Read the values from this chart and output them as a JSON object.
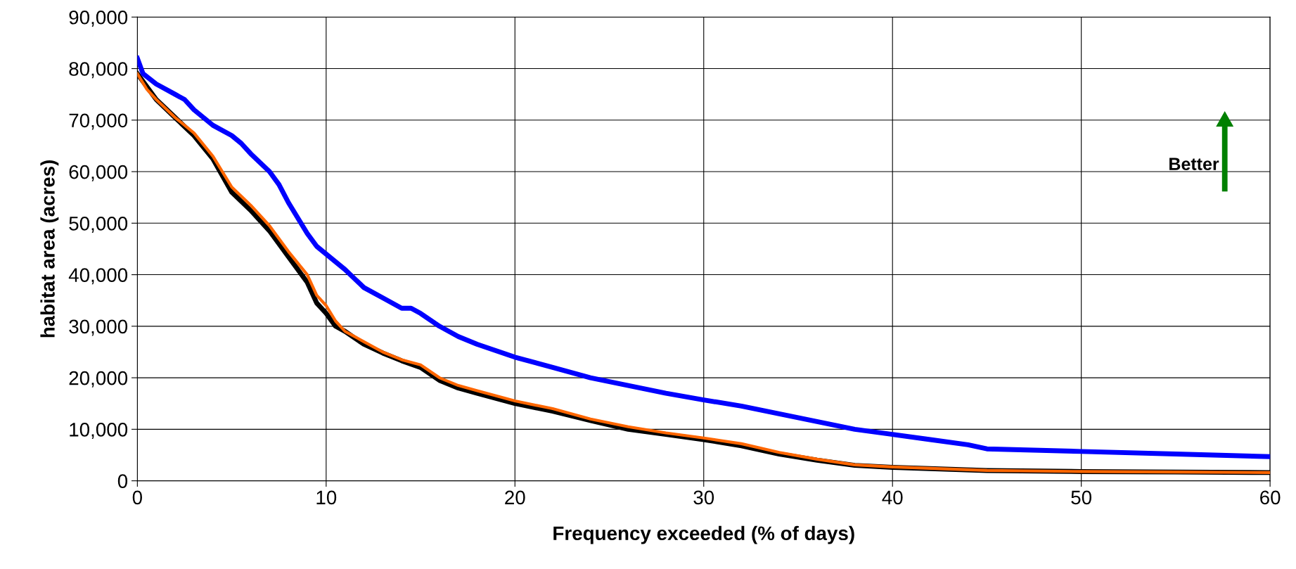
{
  "chart_data": {
    "type": "line",
    "xlabel": "Frequency exceeded (% of days)",
    "ylabel": "habitat area (acres)",
    "xlim": [
      0,
      60
    ],
    "xticks": [
      0,
      10,
      20,
      30,
      40,
      50,
      60
    ],
    "ylim": [
      0,
      90000
    ],
    "yticks": [
      {
        "value": 0,
        "label": "0"
      },
      {
        "value": 10000,
        "label": "10,000"
      },
      {
        "value": 20000,
        "label": "20,000"
      },
      {
        "value": 30000,
        "label": "30,000"
      },
      {
        "value": 40000,
        "label": "40,000"
      },
      {
        "value": 50000,
        "label": "50,000"
      },
      {
        "value": 60000,
        "label": "60,000"
      },
      {
        "value": 70000,
        "label": "70,000"
      },
      {
        "value": 80000,
        "label": "80,000"
      },
      {
        "value": 90000,
        "label": "90,000"
      }
    ],
    "grid": true,
    "legend": false,
    "marker": "none",
    "line_style": "solid",
    "annotations": [
      "Better"
    ],
    "series": [
      {
        "color": "#000000",
        "x": [
          0,
          1,
          2,
          3,
          4,
          5,
          6,
          7,
          8,
          9,
          9.5,
          10,
          10.5,
          11,
          12,
          13,
          14,
          15,
          16,
          17,
          18,
          20,
          22,
          24,
          26,
          28,
          30,
          32,
          34,
          36,
          38,
          40,
          45,
          50,
          55,
          60
        ],
        "values": [
          79000,
          74000,
          70500,
          67000,
          62500,
          56000,
          52500,
          48500,
          43500,
          38500,
          34500,
          32500,
          30000,
          29000,
          26500,
          24800,
          23300,
          22000,
          19500,
          18000,
          17000,
          15000,
          13500,
          11700,
          10000,
          9000,
          8000,
          6800,
          5200,
          4000,
          3000,
          2600,
          2000,
          1800,
          1700,
          1600
        ]
      },
      {
        "color": "#ff6600",
        "x": [
          0,
          0.5,
          1,
          2,
          3,
          4,
          5,
          6,
          7,
          8,
          9,
          9.5,
          10,
          10.5,
          11,
          12,
          13,
          14,
          15,
          16,
          17,
          18,
          20,
          22,
          24,
          26,
          28,
          30,
          32,
          34,
          36,
          38,
          40,
          45,
          50,
          55,
          60
        ],
        "values": [
          79000,
          76000,
          74000,
          70500,
          67500,
          63000,
          57000,
          53500,
          49500,
          44500,
          40000,
          36000,
          34000,
          31000,
          29000,
          27000,
          25000,
          23500,
          22500,
          20000,
          18500,
          17500,
          15500,
          14000,
          12000,
          10500,
          9300,
          8300,
          7200,
          5500,
          4200,
          3100,
          2700,
          2000,
          1800,
          1700,
          1600
        ]
      },
      {
        "color": "#0000ff",
        "x": [
          0,
          0.3,
          1,
          2,
          2.5,
          3,
          4,
          5,
          5.5,
          6,
          7,
          7.5,
          8,
          9,
          9.5,
          10,
          11,
          12,
          13,
          14,
          14.5,
          15,
          16,
          17,
          18,
          20,
          22,
          24,
          26,
          28,
          30,
          32,
          34,
          36,
          38,
          40,
          42,
          44,
          45,
          50,
          55,
          60
        ],
        "values": [
          82000,
          79000,
          77000,
          75000,
          74000,
          72000,
          69000,
          67000,
          65500,
          63500,
          60000,
          57500,
          54000,
          48000,
          45500,
          44000,
          41000,
          37500,
          35500,
          33500,
          33500,
          32500,
          30000,
          28000,
          26500,
          24000,
          22000,
          20000,
          18500,
          17000,
          15700,
          14500,
          13000,
          11500,
          10000,
          9000,
          8000,
          7000,
          6200,
          5700,
          5200,
          4700
        ]
      }
    ]
  }
}
